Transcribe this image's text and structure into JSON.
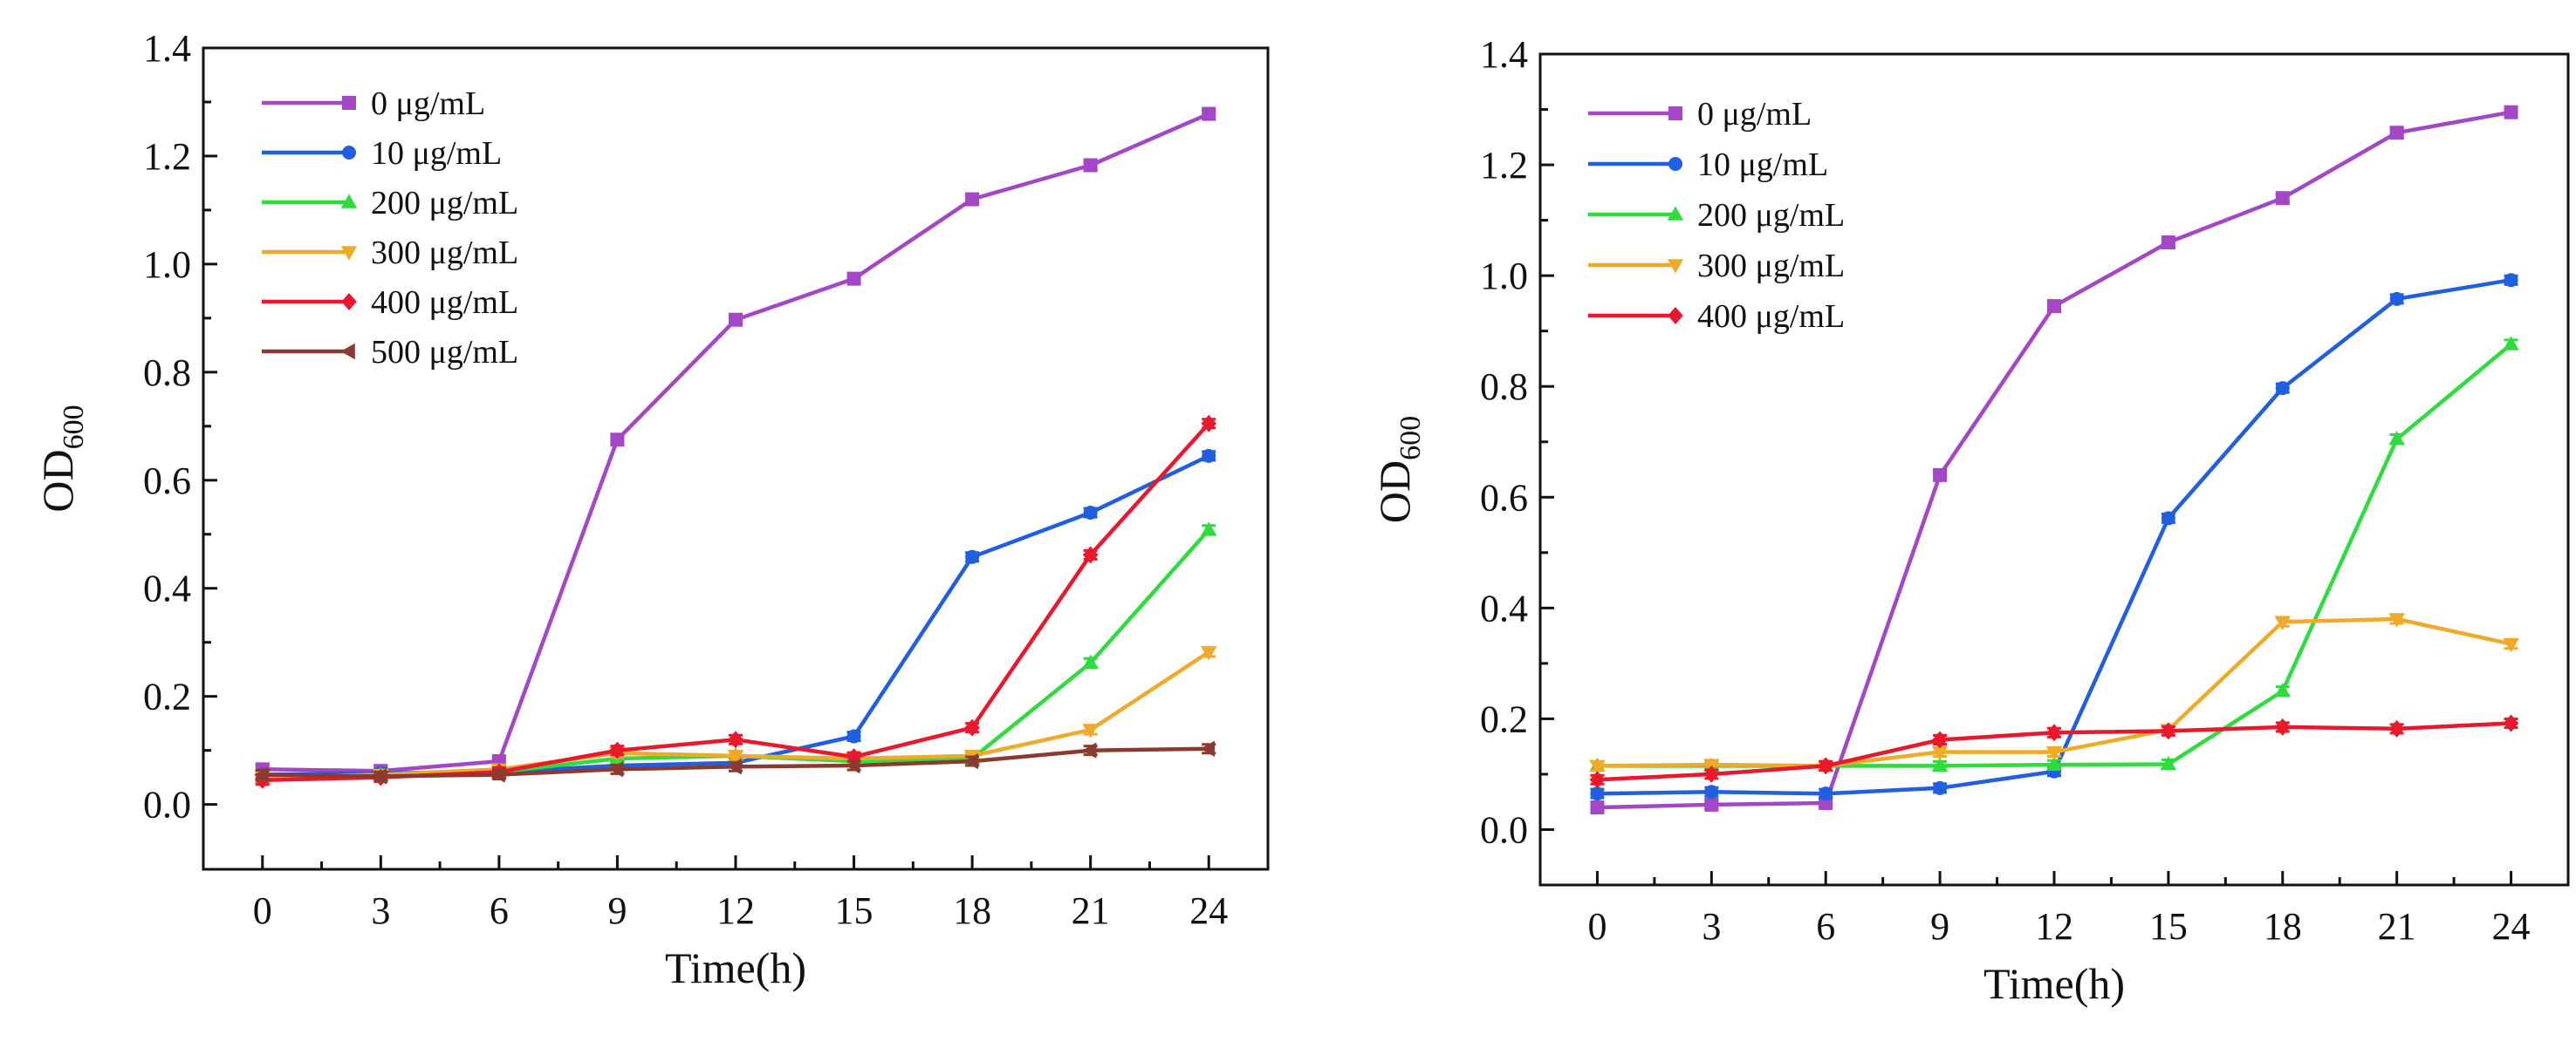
{
  "chart_data": [
    {
      "type": "line",
      "title": "",
      "xlabel": "Time(h)",
      "ylabel": "OD",
      "ylabel_sub": "600",
      "x": [
        0,
        3,
        6,
        9,
        12,
        15,
        18,
        21,
        24
      ],
      "xticks": [
        "0",
        "3",
        "6",
        "9",
        "12",
        "15",
        "18",
        "21",
        "24"
      ],
      "xlim": [
        -1.5,
        25.5
      ],
      "ylim": [
        -0.12,
        1.4
      ],
      "yticks": [
        "0.0",
        "0.2",
        "0.4",
        "0.6",
        "0.8",
        "1.0",
        "1.2",
        "1.4"
      ],
      "grid": false,
      "legend_position": "top-left",
      "series": [
        {
          "name": "0 μg/mL",
          "color": "#a347c6",
          "marker": "square",
          "values": [
            0.065,
            0.062,
            0.08,
            0.675,
            0.897,
            0.973,
            1.12,
            1.183,
            1.278
          ]
        },
        {
          "name": "10 μg/mL",
          "color": "#1f5fe0",
          "marker": "circle",
          "values": [
            0.055,
            0.058,
            0.06,
            0.072,
            0.077,
            0.126,
            0.458,
            0.54,
            0.645
          ]
        },
        {
          "name": "200 μg/mL",
          "color": "#2edc3e",
          "marker": "triangle-up",
          "values": [
            0.05,
            0.055,
            0.06,
            0.085,
            0.09,
            0.08,
            0.085,
            0.262,
            0.508
          ]
        },
        {
          "name": "300 μg/mL",
          "color": "#f0aa2a",
          "marker": "triangle-down",
          "values": [
            0.05,
            0.055,
            0.065,
            0.095,
            0.09,
            0.085,
            0.09,
            0.138,
            0.282
          ]
        },
        {
          "name": "400 μg/mL",
          "color": "#e8192c",
          "marker": "diamond",
          "values": [
            0.045,
            0.05,
            0.06,
            0.1,
            0.12,
            0.088,
            0.142,
            0.462,
            0.705
          ]
        },
        {
          "name": "500 μg/mL",
          "color": "#8a3a2e",
          "marker": "left-triangle",
          "values": [
            0.055,
            0.052,
            0.055,
            0.065,
            0.07,
            0.072,
            0.08,
            0.1,
            0.103
          ]
        }
      ]
    },
    {
      "type": "line",
      "title": "",
      "xlabel": "Time(h)",
      "ylabel": "OD",
      "ylabel_sub": "600",
      "x": [
        0,
        3,
        6,
        9,
        12,
        15,
        18,
        21,
        24
      ],
      "xticks": [
        "0",
        "3",
        "6",
        "9",
        "12",
        "15",
        "18",
        "21",
        "24"
      ],
      "xlim": [
        -1.5,
        25.5
      ],
      "ylim": [
        -0.1,
        1.4
      ],
      "yticks": [
        "0.0",
        "0.2",
        "0.4",
        "0.6",
        "0.8",
        "1.0",
        "1.2",
        "1.4"
      ],
      "grid": false,
      "legend_position": "top-left",
      "series": [
        {
          "name": "0 μg/mL",
          "color": "#a347c6",
          "marker": "square",
          "values": [
            0.04,
            0.045,
            0.048,
            0.64,
            0.945,
            1.06,
            1.14,
            1.258,
            1.295
          ]
        },
        {
          "name": "10 μg/mL",
          "color": "#1f5fe0",
          "marker": "circle",
          "values": [
            0.065,
            0.068,
            0.065,
            0.075,
            0.105,
            0.562,
            0.797,
            0.958,
            0.992
          ]
        },
        {
          "name": "200 μg/mL",
          "color": "#2edc3e",
          "marker": "triangle-up",
          "values": [
            0.115,
            0.115,
            0.115,
            0.115,
            0.117,
            0.118,
            0.25,
            0.705,
            0.876
          ]
        },
        {
          "name": "300 μg/mL",
          "color": "#f0aa2a",
          "marker": "triangle-down",
          "values": [
            0.115,
            0.117,
            0.115,
            0.14,
            0.14,
            0.18,
            0.375,
            0.38,
            0.335
          ]
        },
        {
          "name": "400 μg/mL",
          "color": "#e8192c",
          "marker": "diamond",
          "values": [
            0.09,
            0.1,
            0.115,
            0.162,
            0.175,
            0.178,
            0.185,
            0.182,
            0.192
          ]
        }
      ]
    }
  ]
}
